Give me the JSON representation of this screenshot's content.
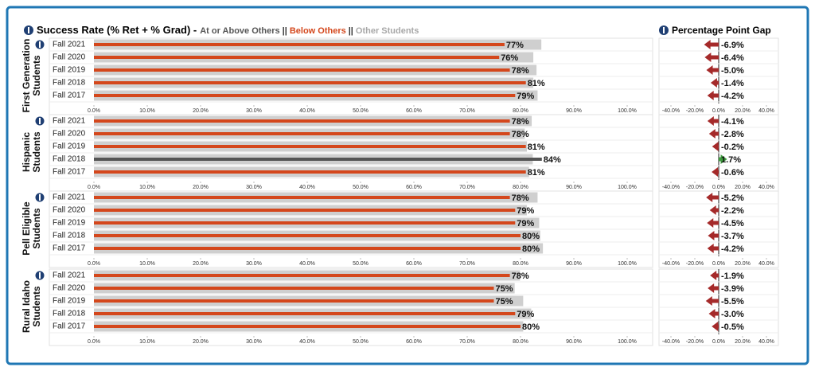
{
  "header": {
    "title": "Success Rate (% Ret + % Grad) -",
    "separator": "||",
    "legend": [
      {
        "label": "At or Above Others",
        "color": "#555555"
      },
      {
        "label": "Below Others",
        "color": "#d4471c"
      },
      {
        "label": "Other Students",
        "color": "#a8a8a8"
      }
    ],
    "gap_title": "Percentage Point Gap"
  },
  "chart_data": [
    {
      "type": "bar",
      "title": "First Generation Students",
      "categories": [
        "Fall 2021",
        "Fall 2020",
        "Fall 2019",
        "Fall 2018",
        "Fall 2017"
      ],
      "series": [
        {
          "color": "#cfcfcf",
          "values": [
            83.9,
            82.4,
            83,
            82.4,
            83.2
          ]
        },
        {
          "colors": [
            "#d4471c",
            "#d4471c",
            "#d4471c",
            "#d4471c",
            "#d4471c"
          ],
          "values": [
            77,
            76,
            78,
            81,
            79
          ],
          "value_labels": [
            "77%",
            "76%",
            "78%",
            "81%",
            "79%"
          ]
        }
      ],
      "xlim": [
        0,
        105
      ],
      "xticks": [
        {
          "value": 0,
          "label": "0.0%"
        },
        {
          "value": 10,
          "label": "10.0%"
        },
        {
          "value": 20,
          "label": "20.0%"
        },
        {
          "value": 30,
          "label": "30.0%"
        },
        {
          "value": 40,
          "label": "40.0%"
        },
        {
          "value": 50,
          "label": "50.0%"
        },
        {
          "value": 60,
          "label": "60.0%"
        },
        {
          "value": 70,
          "label": "70.0%"
        },
        {
          "value": 80,
          "label": "80.0%"
        },
        {
          "value": 90,
          "label": "90.0%"
        },
        {
          "value": 100,
          "label": "100.0%"
        }
      ]
    },
    {
      "type": "bar",
      "title": "Hispanic Students",
      "categories": [
        "Fall 2021",
        "Fall 2020",
        "Fall 2019",
        "Fall 2018",
        "Fall 2017"
      ],
      "series": [
        {
          "color": "#cfcfcf",
          "values": [
            82.1,
            80.8,
            81.2,
            82.3,
            81.6
          ]
        },
        {
          "colors": [
            "#d4471c",
            "#d4471c",
            "#d4471c",
            "#555555",
            "#d4471c"
          ],
          "values": [
            78,
            78,
            81,
            84,
            81
          ],
          "value_labels": [
            "78%",
            "78%",
            "81%",
            "84%",
            "81%"
          ]
        }
      ],
      "xlim": [
        0,
        105
      ],
      "xticks": [
        {
          "value": 0,
          "label": "0.0%"
        },
        {
          "value": 10,
          "label": "10.0%"
        },
        {
          "value": 20,
          "label": "20.0%"
        },
        {
          "value": 30,
          "label": "30.0%"
        },
        {
          "value": 40,
          "label": "40.0%"
        },
        {
          "value": 50,
          "label": "50.0%"
        },
        {
          "value": 60,
          "label": "60.0%"
        },
        {
          "value": 70,
          "label": "70.0%"
        },
        {
          "value": 80,
          "label": "80.0%"
        },
        {
          "value": 90,
          "label": "90.0%"
        },
        {
          "value": 100,
          "label": "100.0%"
        }
      ]
    },
    {
      "type": "bar",
      "title": "Pell Eligible Students",
      "categories": [
        "Fall 2021",
        "Fall 2020",
        "Fall 2019",
        "Fall 2018",
        "Fall 2017"
      ],
      "series": [
        {
          "color": "#cfcfcf",
          "values": [
            83.2,
            81.2,
            83.5,
            83.7,
            84.2
          ]
        },
        {
          "colors": [
            "#d4471c",
            "#d4471c",
            "#d4471c",
            "#d4471c",
            "#d4471c"
          ],
          "values": [
            78,
            79,
            79,
            80,
            80
          ],
          "value_labels": [
            "78%",
            "79%",
            "79%",
            "80%",
            "80%"
          ]
        }
      ],
      "xlim": [
        0,
        105
      ],
      "xticks": [
        {
          "value": 0,
          "label": "0.0%"
        },
        {
          "value": 10,
          "label": "10.0%"
        },
        {
          "value": 20,
          "label": "20.0%"
        },
        {
          "value": 30,
          "label": "30.0%"
        },
        {
          "value": 40,
          "label": "40.0%"
        },
        {
          "value": 50,
          "label": "50.0%"
        },
        {
          "value": 60,
          "label": "60.0%"
        },
        {
          "value": 70,
          "label": "70.0%"
        },
        {
          "value": 80,
          "label": "80.0%"
        },
        {
          "value": 90,
          "label": "90.0%"
        },
        {
          "value": 100,
          "label": "100.0%"
        }
      ]
    },
    {
      "type": "bar",
      "title": "Rural Idaho Students",
      "categories": [
        "Fall 2021",
        "Fall 2020",
        "Fall 2019",
        "Fall 2018",
        "Fall 2017"
      ],
      "series": [
        {
          "color": "#cfcfcf",
          "values": [
            79.9,
            78.9,
            80.5,
            82,
            80.5
          ]
        },
        {
          "colors": [
            "#d4471c",
            "#d4471c",
            "#d4471c",
            "#d4471c",
            "#d4471c"
          ],
          "values": [
            78,
            75,
            75,
            79,
            80
          ],
          "value_labels": [
            "78%",
            "75%",
            "75%",
            "79%",
            "80%"
          ]
        }
      ],
      "xlim": [
        0,
        105
      ],
      "xticks": [
        {
          "value": 0,
          "label": "0.0%"
        },
        {
          "value": 10,
          "label": "10.0%"
        },
        {
          "value": 20,
          "label": "20.0%"
        },
        {
          "value": 30,
          "label": "30.0%"
        },
        {
          "value": 40,
          "label": "40.0%"
        },
        {
          "value": 50,
          "label": "50.0%"
        },
        {
          "value": 60,
          "label": "60.0%"
        },
        {
          "value": 70,
          "label": "70.0%"
        },
        {
          "value": 80,
          "label": "80.0%"
        },
        {
          "value": 90,
          "label": "90.0%"
        },
        {
          "value": 100,
          "label": "100.0%"
        }
      ]
    },
    {
      "type": "arrow",
      "values": [
        -6.9,
        -6.4,
        -5.0,
        -1.4,
        -4.2
      ],
      "value_labels": [
        "-6.9%",
        "-6.4%",
        "-5.0%",
        "-1.4%",
        "-4.2%"
      ],
      "colors": [
        "#a52a2a",
        "#a52a2a",
        "#a52a2a",
        "#a52a2a",
        "#a52a2a"
      ],
      "xlim": [
        -50,
        50
      ],
      "xticks": [
        {
          "value": -40,
          "label": "-40.0%"
        },
        {
          "value": -20,
          "label": "-20.0%"
        },
        {
          "value": 0,
          "label": "0.0%"
        },
        {
          "value": 20,
          "label": "20.0%"
        },
        {
          "value": 40,
          "label": "40.0%"
        }
      ]
    },
    {
      "type": "arrow",
      "values": [
        -4.1,
        -2.8,
        -0.2,
        1.7,
        -0.6
      ],
      "value_labels": [
        "-4.1%",
        "-2.8%",
        "-0.2%",
        "1.7%",
        "-0.6%"
      ],
      "colors": [
        "#a52a2a",
        "#a52a2a",
        "#a52a2a",
        "#3e9a3e",
        "#a52a2a"
      ],
      "xlim": [
        -50,
        50
      ],
      "xticks": [
        {
          "value": -40,
          "label": "-40.0%"
        },
        {
          "value": -20,
          "label": "-20.0%"
        },
        {
          "value": 0,
          "label": "0.0%"
        },
        {
          "value": 20,
          "label": "20.0%"
        },
        {
          "value": 40,
          "label": "40.0%"
        }
      ]
    },
    {
      "type": "arrow",
      "values": [
        -5.2,
        -2.2,
        -4.5,
        -3.7,
        -4.2
      ],
      "value_labels": [
        "-5.2%",
        "-2.2%",
        "-4.5%",
        "-3.7%",
        "-4.2%"
      ],
      "colors": [
        "#a52a2a",
        "#a52a2a",
        "#a52a2a",
        "#a52a2a",
        "#a52a2a"
      ],
      "xlim": [
        -50,
        50
      ],
      "xticks": [
        {
          "value": -40,
          "label": "-40.0%"
        },
        {
          "value": -20,
          "label": "-20.0%"
        },
        {
          "value": 0,
          "label": "0.0%"
        },
        {
          "value": 20,
          "label": "20.0%"
        },
        {
          "value": 40,
          "label": "40.0%"
        }
      ]
    },
    {
      "type": "arrow",
      "values": [
        -1.9,
        -3.9,
        -5.5,
        -3.0,
        -0.5
      ],
      "value_labels": [
        "-1.9%",
        "-3.9%",
        "-5.5%",
        "-3.0%",
        "-0.5%"
      ],
      "colors": [
        "#a52a2a",
        "#a52a2a",
        "#a52a2a",
        "#a52a2a",
        "#a52a2a"
      ],
      "xlim": [
        -50,
        50
      ],
      "xticks": [
        {
          "value": -40,
          "label": "-40.0%"
        },
        {
          "value": -20,
          "label": "-20.0%"
        },
        {
          "value": 0,
          "label": "0.0%"
        },
        {
          "value": 20,
          "label": "20.0%"
        },
        {
          "value": 40,
          "label": "40.0%"
        }
      ]
    }
  ]
}
